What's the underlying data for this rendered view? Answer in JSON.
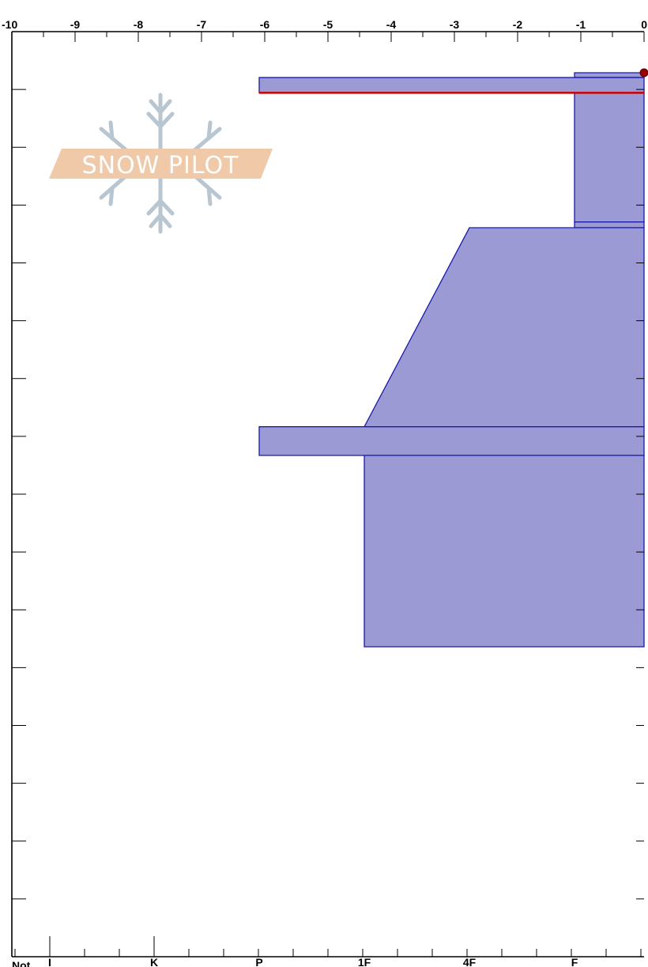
{
  "chart_data": {
    "type": "area",
    "x_axis_top": {
      "range": [
        -10,
        0
      ],
      "tick_labels": [
        "-10",
        "-9",
        "-8",
        "-7",
        "-6",
        "-5",
        "-4",
        "-3",
        "-2",
        "-1",
        "0"
      ]
    },
    "x_axis_bottom": {
      "categories": [
        "I",
        "K",
        "P",
        "1F",
        "4F",
        "F"
      ]
    },
    "y_axis": {
      "tick_count": 15,
      "labels": []
    },
    "watermark": {
      "text": "SNOW PILOT"
    },
    "layers": [
      {
        "hardness": "F",
        "top": 0.0,
        "bottom": 0.25
      },
      {
        "hardness": "P",
        "top": 0.25,
        "bottom": 1.05
      },
      {
        "hardness": "F",
        "top": 1.05,
        "bottom": 7.8
      },
      {
        "hardness": "F",
        "top": 7.8,
        "bottom": 8.1
      },
      {
        "hardness_top": "4F",
        "hardness_bottom": "1F",
        "top": 8.1,
        "bottom": 18.5
      },
      {
        "hardness": "P",
        "top": 18.5,
        "bottom": 20.0
      },
      {
        "hardness": "1F",
        "top": 20.0,
        "bottom": 30.0
      }
    ],
    "highlighted_interface": {
      "depth": 1.05
    },
    "surface_marker": {
      "depth": 0.0
    },
    "colors": {
      "layer_fill": "#9b9ad5",
      "layer_stroke": "#1a1aa6",
      "interface_line": "#c80000",
      "marker": "#9a0000",
      "watermark_band": "#f0c9a8",
      "watermark_flake": "#b8c6d2"
    }
  },
  "footer": {
    "cutoff_text": "Not"
  }
}
